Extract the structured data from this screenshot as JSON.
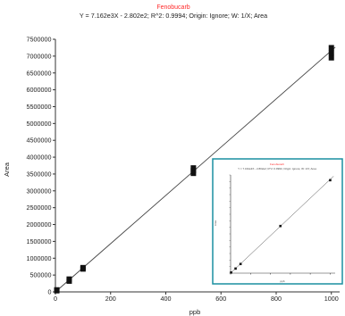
{
  "chart_data": [
    {
      "type": "scatter",
      "title": "Fenobucarb",
      "subtitle": "Y = 7.162e3X - 2.802e2; R^2: 0.9994; Origin: Ignore; W: 1/X; Area",
      "xlabel": "ppb",
      "ylabel": "Area",
      "xlim": [
        0,
        1030
      ],
      "ylim": [
        0,
        7500000
      ],
      "xticks": [
        0,
        200,
        400,
        600,
        800,
        1000
      ],
      "yticks": [
        0,
        500000,
        1000000,
        1500000,
        2000000,
        2500000,
        3000000,
        3500000,
        4000000,
        4500000,
        5000000,
        5500000,
        6000000,
        6500000,
        7000000,
        7500000
      ],
      "fit_line": {
        "slope": 7162,
        "intercept": -280.2
      },
      "series": [
        {
          "x": [
            5,
            5,
            50,
            50,
            100,
            100,
            500,
            500,
            500,
            1000,
            1000,
            1000
          ],
          "y": [
            35000,
            60000,
            320000,
            380000,
            680000,
            720000,
            3520000,
            3600000,
            3680000,
            6950000,
            7100000,
            7250000
          ]
        }
      ],
      "title_color": "#ff2a2a"
    },
    {
      "type": "scatter",
      "title": "Fenobucarb",
      "subtitle": "Y = 7.162e3X - 2.802e2; R^2: 0.9994; Origin: Ignore; W: 1/X; Area",
      "xlabel": "ppb",
      "ylabel": "Area",
      "xlim": [
        0,
        1050
      ],
      "ylim": [
        0,
        7500000
      ],
      "xticks": [
        0,
        200,
        400,
        600,
        800,
        1000
      ],
      "fit_line": {
        "slope": 7162,
        "intercept": -280.2
      },
      "series": [
        {
          "x": [
            5,
            50,
            100,
            500,
            1000
          ],
          "y": [
            50000,
            350000,
            700000,
            3600000,
            7100000
          ]
        }
      ],
      "frame_color": "#1a8fa0"
    }
  ]
}
